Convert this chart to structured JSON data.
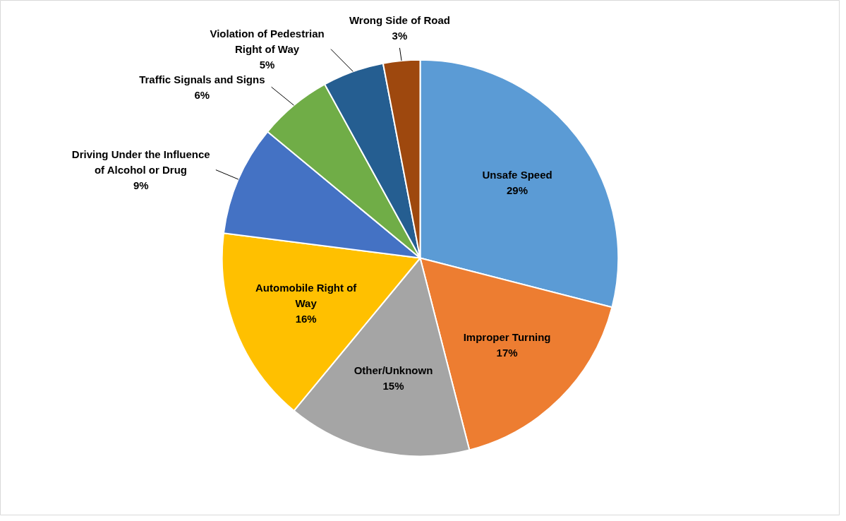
{
  "chart_data": {
    "type": "pie",
    "categories": [
      "Unsafe Speed",
      "Improper Turning",
      "Other/Unknown",
      "Automobile Right of Way",
      "Driving Under the Influence of Alcohol or Drug",
      "Traffic Signals and Signs",
      "Violation of Pedestrian Right of Way",
      "Wrong Side of Road"
    ],
    "values": [
      29,
      17,
      15,
      16,
      9,
      6,
      5,
      3
    ],
    "colors": [
      "#5b9bd5",
      "#ed7d31",
      "#a5a5a5",
      "#ffc000",
      "#4472c4",
      "#70ad47",
      "#255e91",
      "#9e480e"
    ],
    "value_labels": [
      "29%",
      "17%",
      "15%",
      "16%",
      "9%",
      "6%",
      "5%",
      "3%"
    ]
  }
}
